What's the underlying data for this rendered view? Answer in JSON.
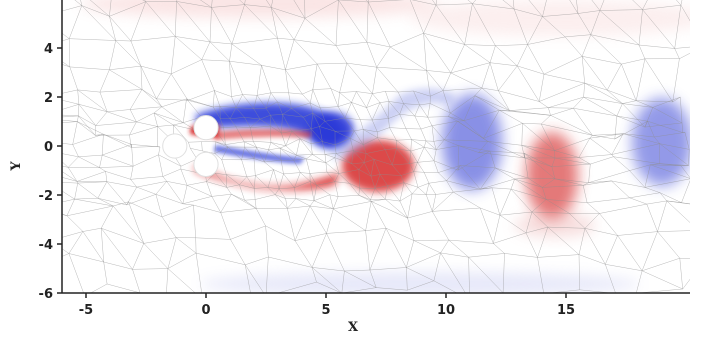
{
  "figure": {
    "xlabel": "X",
    "ylabel": "Y",
    "xlim": [
      -6,
      20
    ],
    "ylim": [
      -6,
      6
    ],
    "x_ticks": [
      {
        "value": -5,
        "label": "-5"
      },
      {
        "value": 0,
        "label": "0"
      },
      {
        "value": 5,
        "label": "5"
      },
      {
        "value": 10,
        "label": "10"
      },
      {
        "value": 15,
        "label": "15"
      }
    ],
    "y_ticks": [
      {
        "value": 4,
        "label": "4"
      },
      {
        "value": 2,
        "label": "2"
      },
      {
        "value": 0,
        "label": "0"
      },
      {
        "value": -2,
        "label": "-2"
      },
      {
        "value": -4,
        "label": "-4"
      },
      {
        "value": -6,
        "label": "-6"
      }
    ],
    "cylinders": [
      {
        "x": -1.3,
        "y": 0.0,
        "r": 0.5
      },
      {
        "x": 0.0,
        "y": 0.75,
        "r": 0.5
      },
      {
        "x": 0.0,
        "y": -0.75,
        "r": 0.5
      }
    ],
    "colors": {
      "positive_vorticity": "#1f2fd6",
      "negative_vorticity": "#d61f1f",
      "mesh": "#9a9a9a",
      "background": "#ffffff"
    }
  }
}
